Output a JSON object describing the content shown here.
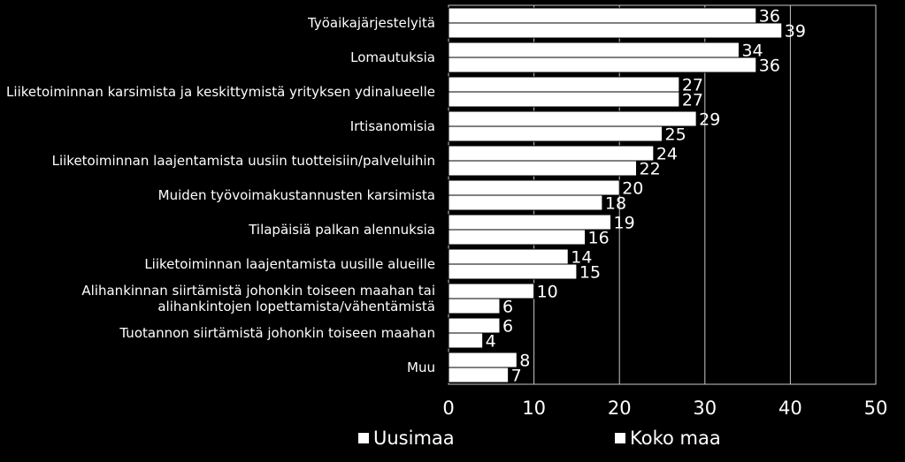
{
  "chart_data": {
    "type": "bar",
    "orientation": "horizontal",
    "categories": [
      [
        "Työaikajärjestelyitä"
      ],
      [
        "Lomautuksia"
      ],
      [
        "Liiketoiminnan karsimista ja keskittymistä yrityksen ydinalueelle"
      ],
      [
        "Irtisanomisia"
      ],
      [
        "Liiketoiminnan laajentamista uusiin tuotteisiin/palveluihin"
      ],
      [
        "Muiden työvoimakustannusten karsimista"
      ],
      [
        "Tilapäisiä palkan alennuksia"
      ],
      [
        "Liiketoiminnan laajentamista uusille alueille"
      ],
      [
        "Alihankinnan siirtämistä johonkin toiseen maahan tai",
        "alihankintojen lopettamista/vähentämistä"
      ],
      [
        "Tuotannon siirtämistä johonkin toiseen maahan"
      ],
      [
        "Muu"
      ]
    ],
    "series": [
      {
        "name": "Uusimaa",
        "values": [
          36,
          34,
          27,
          29,
          24,
          20,
          19,
          14,
          10,
          6,
          8
        ]
      },
      {
        "name": "Koko maa",
        "values": [
          39,
          36,
          27,
          25,
          22,
          18,
          16,
          15,
          6,
          4,
          7
        ]
      }
    ],
    "xlim": [
      0,
      50
    ],
    "xticks": [
      0,
      10,
      20,
      30,
      40,
      50
    ],
    "grid": true,
    "legend": "bottom-center",
    "colors": {
      "background": "#000000",
      "bar": "#ffffff",
      "bar_outline": "#000000",
      "text": "#ffffff",
      "grid": "#c8c8c8"
    }
  }
}
